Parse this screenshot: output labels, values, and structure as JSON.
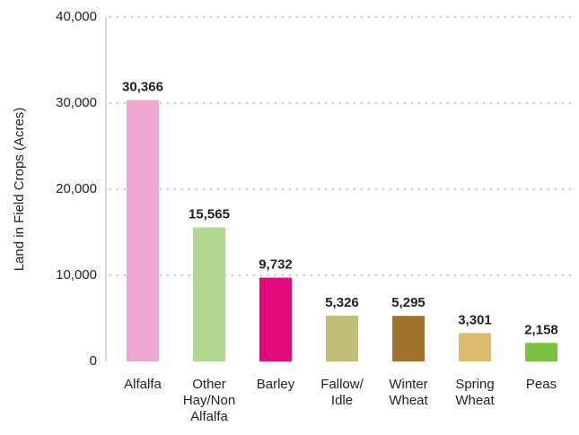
{
  "chart_data": {
    "type": "bar",
    "y_label": "Land in Field Crops (Acres)",
    "categories": [
      "Alfalfa",
      "Other\nHay/Non\nAlfalfa",
      "Barley",
      "Fallow/\nIdle",
      "Winter\nWheat",
      "Spring\nWheat",
      "Peas"
    ],
    "values": [
      30366,
      15565,
      9732,
      5326,
      5295,
      3301,
      2158
    ],
    "value_labels": [
      "30,366",
      "15,565",
      "9,732",
      "5,326",
      "5,295",
      "3,301",
      "2,158"
    ],
    "colors": [
      "#eca8cf",
      "#b1d78f",
      "#e2097c",
      "#c2be79",
      "#a0722b",
      "#dcba6f",
      "#7cc142"
    ],
    "ylim": [
      0,
      40000
    ],
    "yticks": [
      0,
      {
        "value": 10000,
        "label": "10,000"
      },
      {
        "value": 20000,
        "label": "20,000"
      },
      {
        "value": 30000,
        "label": "30,000"
      },
      {
        "value": 40000,
        "label": "40,000"
      }
    ],
    "grid": true
  }
}
